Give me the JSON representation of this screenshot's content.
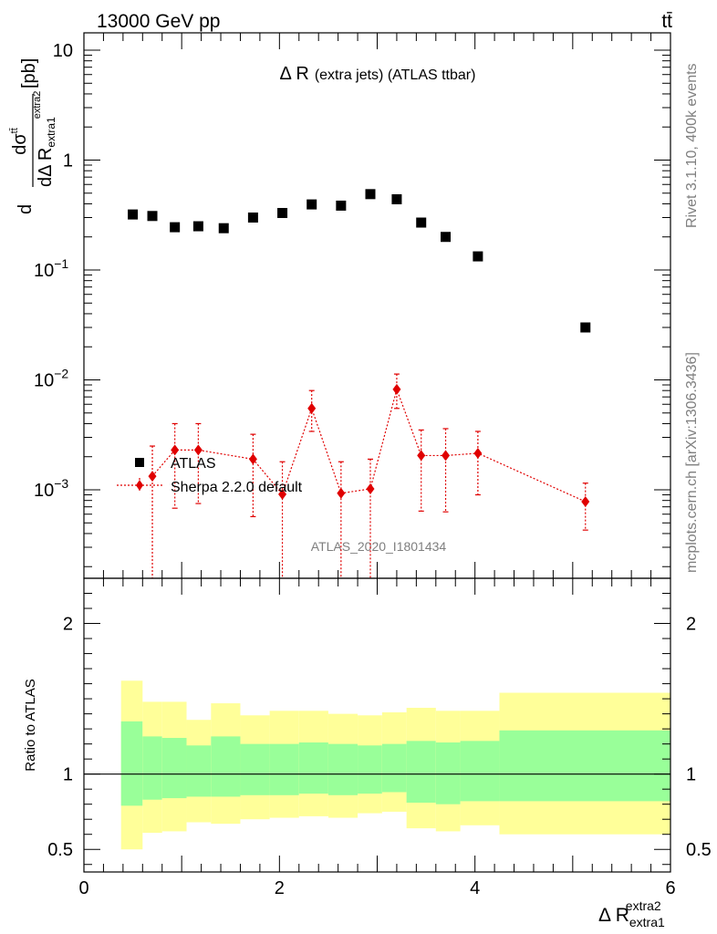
{
  "header": {
    "energy_label": "13000 GeV pp",
    "process_label": "tt̄"
  },
  "side_labels": {
    "rivet": "Rivet 3.1.10,  400k events",
    "site": "mcplots.cern.ch [arXiv:1306.3436]"
  },
  "watermark": "ATLAS_2020_I1801434",
  "colors": {
    "data": "#000000",
    "mc": "#e00000",
    "band_outer": "#ffff99",
    "band_inner": "#99ff99"
  },
  "chart_data": [
    {
      "type": "scatter",
      "title_main": "Δ R",
      "title_sub": "(extra jets) (ATLAS ttbar)",
      "ylabel": "dσ^tt / dΔ R_extra1^extra2 [pb]",
      "xlim": [
        0,
        6
      ],
      "ylim": [
        0.00015,
        15
      ],
      "yscale": "log",
      "yticks": [
        {
          "value": 0.001,
          "label": "10",
          "exp": "−3"
        },
        {
          "value": 0.01,
          "label": "10",
          "exp": "−2"
        },
        {
          "value": 0.1,
          "label": "10",
          "exp": "−1"
        },
        {
          "value": 1,
          "label": "1",
          "exp": ""
        },
        {
          "value": 10,
          "label": "10",
          "exp": ""
        }
      ],
      "legend": {
        "placement": "lower-left",
        "entries": [
          "ATLAS",
          "Sherpa 2.2.0 default"
        ]
      },
      "series": [
        {
          "name": "ATLAS",
          "marker": "square",
          "x": [
            0.5,
            0.7,
            0.93,
            1.17,
            1.43,
            1.73,
            2.03,
            2.33,
            2.63,
            2.93,
            3.2,
            3.45,
            3.7,
            4.03,
            5.13
          ],
          "y": [
            0.32,
            0.31,
            0.245,
            0.25,
            0.24,
            0.3,
            0.33,
            0.395,
            0.385,
            0.49,
            0.44,
            0.27,
            0.2,
            0.133,
            0.03
          ]
        },
        {
          "name": "Sherpa 2.2.0 default",
          "marker": "diamond",
          "x": [
            0.7,
            0.93,
            1.17,
            1.73,
            2.03,
            2.33,
            2.63,
            2.93,
            3.2,
            3.45,
            3.7,
            4.03,
            5.13
          ],
          "y": [
            0.00133,
            0.0023,
            0.0023,
            0.0019,
            0.00091,
            0.0055,
            0.00093,
            0.00102,
            0.0082,
            0.00205,
            0.00205,
            0.00215,
            0.00078
          ],
          "y_low": [
            0.00015,
            0.00068,
            0.00075,
            0.00057,
            0.00015,
            0.0034,
            0.00015,
            0.00015,
            0.0055,
            0.00064,
            0.00063,
            0.0009,
            0.00043
          ],
          "y_high": [
            0.0025,
            0.004,
            0.004,
            0.0032,
            0.0018,
            0.008,
            0.0018,
            0.0019,
            0.0113,
            0.0035,
            0.0036,
            0.0034,
            0.00115
          ]
        }
      ]
    },
    {
      "type": "area",
      "ylabel": "Ratio to ATLAS",
      "xlabel": "Δ R_extra1^extra2",
      "xlim": [
        0,
        6
      ],
      "ylim": [
        0.35,
        2.3
      ],
      "yticks": [
        0.5,
        1,
        2
      ],
      "xticks": [
        0,
        2,
        4,
        6
      ],
      "reference_line": 1,
      "bins": [
        {
          "x0": 0.38,
          "x1": 0.6,
          "outer_lo": 0.5,
          "outer_hi": 1.62,
          "inner_lo": 0.79,
          "inner_hi": 1.35
        },
        {
          "x0": 0.6,
          "x1": 0.8,
          "outer_lo": 0.61,
          "outer_hi": 1.48,
          "inner_lo": 0.83,
          "inner_hi": 1.25
        },
        {
          "x0": 0.8,
          "x1": 1.05,
          "outer_lo": 0.62,
          "outer_hi": 1.48,
          "inner_lo": 0.84,
          "inner_hi": 1.24
        },
        {
          "x0": 1.05,
          "x1": 1.3,
          "outer_lo": 0.68,
          "outer_hi": 1.36,
          "inner_lo": 0.85,
          "inner_hi": 1.19
        },
        {
          "x0": 1.3,
          "x1": 1.6,
          "outer_lo": 0.67,
          "outer_hi": 1.47,
          "inner_lo": 0.85,
          "inner_hi": 1.25
        },
        {
          "x0": 1.6,
          "x1": 1.9,
          "outer_lo": 0.7,
          "outer_hi": 1.39,
          "inner_lo": 0.86,
          "inner_hi": 1.2
        },
        {
          "x0": 1.9,
          "x1": 2.2,
          "outer_lo": 0.71,
          "outer_hi": 1.42,
          "inner_lo": 0.86,
          "inner_hi": 1.2
        },
        {
          "x0": 2.2,
          "x1": 2.5,
          "outer_lo": 0.72,
          "outer_hi": 1.42,
          "inner_lo": 0.87,
          "inner_hi": 1.21
        },
        {
          "x0": 2.5,
          "x1": 2.8,
          "outer_lo": 0.71,
          "outer_hi": 1.4,
          "inner_lo": 0.86,
          "inner_hi": 1.2
        },
        {
          "x0": 2.8,
          "x1": 3.05,
          "outer_lo": 0.74,
          "outer_hi": 1.39,
          "inner_lo": 0.87,
          "inner_hi": 1.19
        },
        {
          "x0": 3.05,
          "x1": 3.3,
          "outer_lo": 0.75,
          "outer_hi": 1.41,
          "inner_lo": 0.88,
          "inner_hi": 1.2
        },
        {
          "x0": 3.3,
          "x1": 3.6,
          "outer_lo": 0.64,
          "outer_hi": 1.44,
          "inner_lo": 0.81,
          "inner_hi": 1.22
        },
        {
          "x0": 3.6,
          "x1": 3.85,
          "outer_lo": 0.62,
          "outer_hi": 1.42,
          "inner_lo": 0.8,
          "inner_hi": 1.21
        },
        {
          "x0": 3.85,
          "x1": 4.25,
          "outer_lo": 0.66,
          "outer_hi": 1.42,
          "inner_lo": 0.82,
          "inner_hi": 1.22
        },
        {
          "x0": 4.25,
          "x1": 6.0,
          "outer_lo": 0.6,
          "outer_hi": 1.54,
          "inner_lo": 0.82,
          "inner_hi": 1.29
        }
      ]
    }
  ]
}
